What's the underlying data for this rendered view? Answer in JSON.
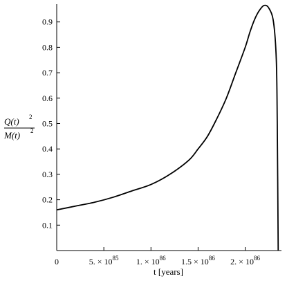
{
  "chart_data": {
    "type": "line",
    "title": "",
    "xlabel": "t [years]",
    "ylabel": {
      "numerator": "Q(t)",
      "denominator": "M(t)",
      "exponent": "2"
    },
    "xlim": [
      0,
      2.37e+86
    ],
    "ylim": [
      0,
      0.97
    ],
    "x_ticks": [
      {
        "value": 0,
        "label": "0"
      },
      {
        "value": 5e+85,
        "mantissa": "5.",
        "exp": "85"
      },
      {
        "value": 1e+86,
        "mantissa": "1.",
        "exp": "86"
      },
      {
        "value": 1.5e+86,
        "mantissa": "1.5",
        "exp": "86"
      },
      {
        "value": 2e+86,
        "mantissa": "2.",
        "exp": "86"
      }
    ],
    "y_ticks": [
      "0.1",
      "0.2",
      "0.3",
      "0.4",
      "0.5",
      "0.6",
      "0.7",
      "0.8",
      "0.9"
    ],
    "series": [
      {
        "x": [
          0,
          2e+85,
          4e+85,
          6e+85,
          8e+85,
          1e+86,
          1.2e+86,
          1.4e+86,
          1.5e+86,
          1.6e+86,
          1.7e+86,
          1.8e+86,
          1.9e+86,
          2e+86,
          2.05e+86,
          2.1e+86,
          2.15e+86,
          2.2e+86,
          2.25e+86,
          2.3e+86,
          2.33e+86,
          2.34e+86,
          2.35e+86
        ],
        "y": [
          0.16,
          0.175,
          0.19,
          0.21,
          0.235,
          0.26,
          0.3,
          0.355,
          0.4,
          0.45,
          0.52,
          0.6,
          0.7,
          0.8,
          0.86,
          0.91,
          0.945,
          0.965,
          0.955,
          0.9,
          0.75,
          0.5,
          0.0
        ]
      }
    ],
    "grid": false,
    "colors": {
      "line": "#000000",
      "axis": "#000000"
    }
  }
}
